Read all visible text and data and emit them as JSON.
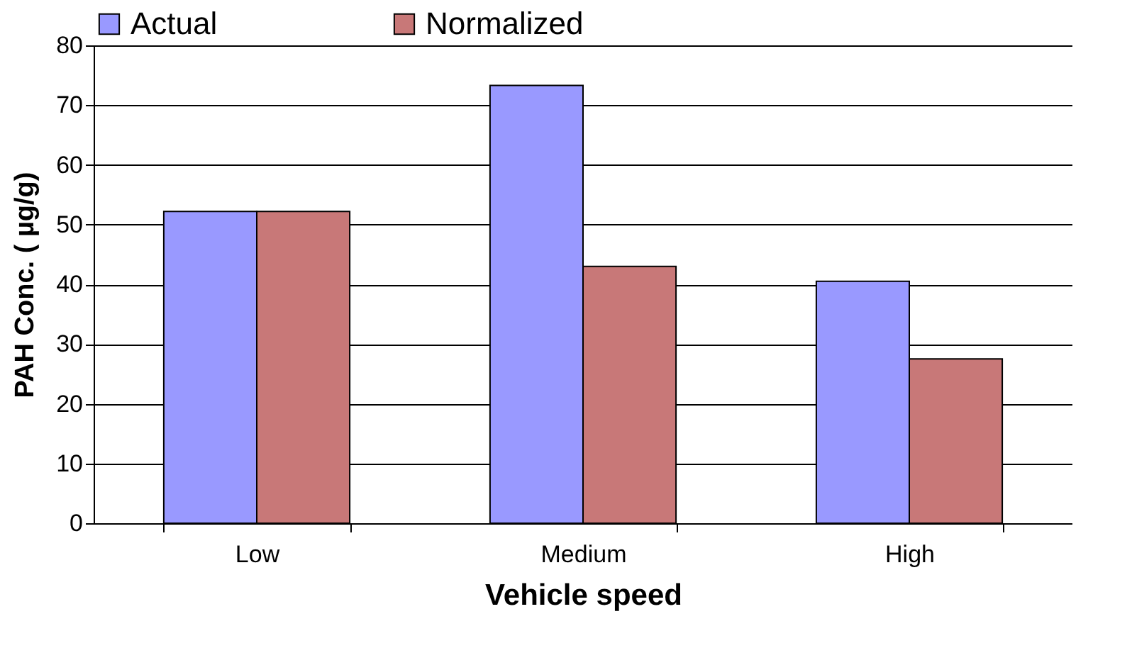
{
  "chart_data": {
    "type": "bar",
    "xlabel": "Vehicle speed",
    "ylabel": "PAH Conc. ( µg/g)",
    "categories": [
      "Low",
      "Medium",
      "High"
    ],
    "series": [
      {
        "name": "Actual",
        "color": "#9999ff",
        "values": [
          52.2,
          73.3,
          40.5
        ]
      },
      {
        "name": "Normalized",
        "color": "#c87878",
        "values": [
          52.2,
          43.0,
          27.5
        ]
      }
    ],
    "ylim": [
      0,
      80
    ],
    "yticks": [
      0,
      10,
      20,
      30,
      40,
      50,
      60,
      70,
      80
    ],
    "grid": "y",
    "legend": "top"
  }
}
